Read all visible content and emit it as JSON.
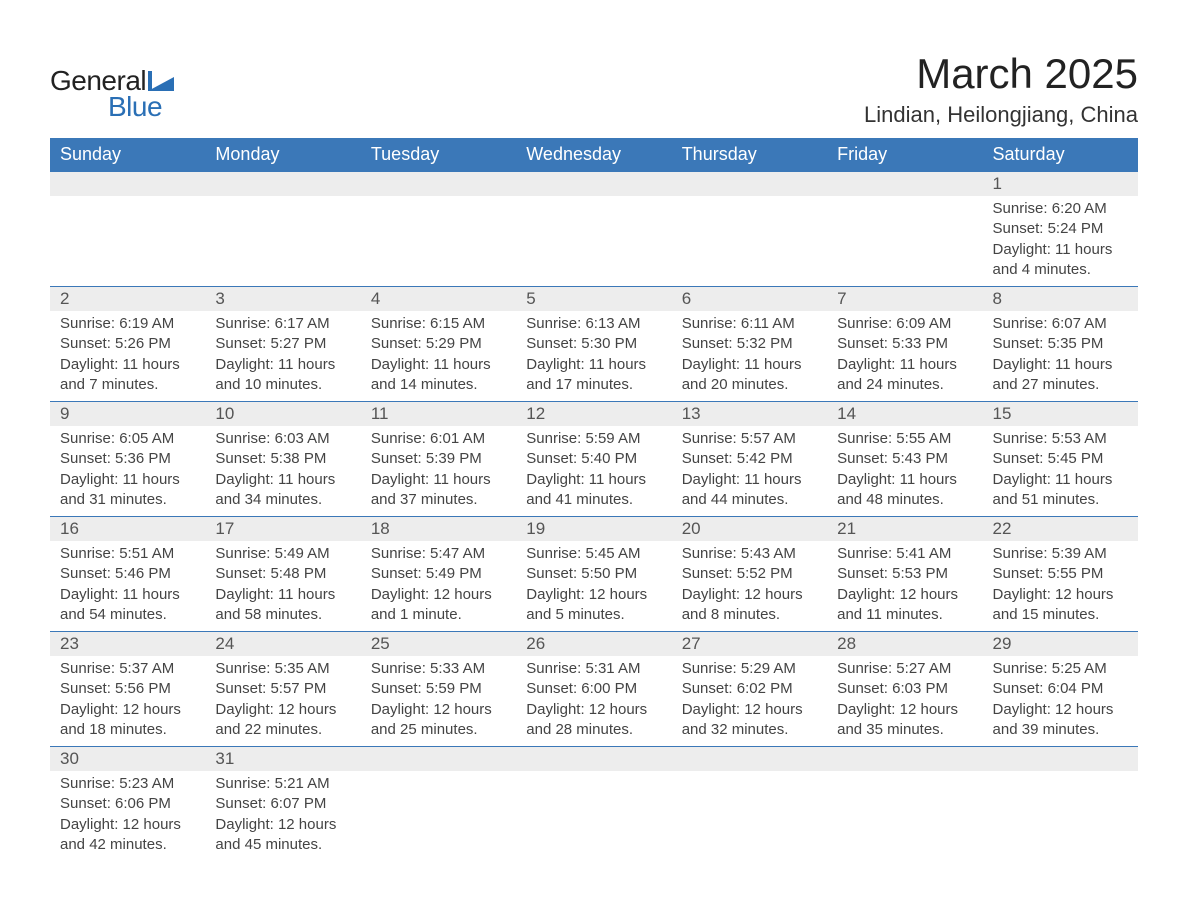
{
  "logo": {
    "text1": "General",
    "text2": "Blue",
    "shape_color": "#2a6fb5"
  },
  "title": "March 2025",
  "location": "Lindian, Heilongjiang, China",
  "colors": {
    "header_bg": "#3b78b8",
    "header_text": "#ffffff",
    "daynum_bg": "#ededed",
    "border": "#3b78b8",
    "text": "#444444"
  },
  "weekdays": [
    "Sunday",
    "Monday",
    "Tuesday",
    "Wednesday",
    "Thursday",
    "Friday",
    "Saturday"
  ],
  "weeks": [
    [
      null,
      null,
      null,
      null,
      null,
      null,
      {
        "n": "1",
        "sunrise": "6:20 AM",
        "sunset": "5:24 PM",
        "daylight": "11 hours and 4 minutes."
      }
    ],
    [
      {
        "n": "2",
        "sunrise": "6:19 AM",
        "sunset": "5:26 PM",
        "daylight": "11 hours and 7 minutes."
      },
      {
        "n": "3",
        "sunrise": "6:17 AM",
        "sunset": "5:27 PM",
        "daylight": "11 hours and 10 minutes."
      },
      {
        "n": "4",
        "sunrise": "6:15 AM",
        "sunset": "5:29 PM",
        "daylight": "11 hours and 14 minutes."
      },
      {
        "n": "5",
        "sunrise": "6:13 AM",
        "sunset": "5:30 PM",
        "daylight": "11 hours and 17 minutes."
      },
      {
        "n": "6",
        "sunrise": "6:11 AM",
        "sunset": "5:32 PM",
        "daylight": "11 hours and 20 minutes."
      },
      {
        "n": "7",
        "sunrise": "6:09 AM",
        "sunset": "5:33 PM",
        "daylight": "11 hours and 24 minutes."
      },
      {
        "n": "8",
        "sunrise": "6:07 AM",
        "sunset": "5:35 PM",
        "daylight": "11 hours and 27 minutes."
      }
    ],
    [
      {
        "n": "9",
        "sunrise": "6:05 AM",
        "sunset": "5:36 PM",
        "daylight": "11 hours and 31 minutes."
      },
      {
        "n": "10",
        "sunrise": "6:03 AM",
        "sunset": "5:38 PM",
        "daylight": "11 hours and 34 minutes."
      },
      {
        "n": "11",
        "sunrise": "6:01 AM",
        "sunset": "5:39 PM",
        "daylight": "11 hours and 37 minutes."
      },
      {
        "n": "12",
        "sunrise": "5:59 AM",
        "sunset": "5:40 PM",
        "daylight": "11 hours and 41 minutes."
      },
      {
        "n": "13",
        "sunrise": "5:57 AM",
        "sunset": "5:42 PM",
        "daylight": "11 hours and 44 minutes."
      },
      {
        "n": "14",
        "sunrise": "5:55 AM",
        "sunset": "5:43 PM",
        "daylight": "11 hours and 48 minutes."
      },
      {
        "n": "15",
        "sunrise": "5:53 AM",
        "sunset": "5:45 PM",
        "daylight": "11 hours and 51 minutes."
      }
    ],
    [
      {
        "n": "16",
        "sunrise": "5:51 AM",
        "sunset": "5:46 PM",
        "daylight": "11 hours and 54 minutes."
      },
      {
        "n": "17",
        "sunrise": "5:49 AM",
        "sunset": "5:48 PM",
        "daylight": "11 hours and 58 minutes."
      },
      {
        "n": "18",
        "sunrise": "5:47 AM",
        "sunset": "5:49 PM",
        "daylight": "12 hours and 1 minute."
      },
      {
        "n": "19",
        "sunrise": "5:45 AM",
        "sunset": "5:50 PM",
        "daylight": "12 hours and 5 minutes."
      },
      {
        "n": "20",
        "sunrise": "5:43 AM",
        "sunset": "5:52 PM",
        "daylight": "12 hours and 8 minutes."
      },
      {
        "n": "21",
        "sunrise": "5:41 AM",
        "sunset": "5:53 PM",
        "daylight": "12 hours and 11 minutes."
      },
      {
        "n": "22",
        "sunrise": "5:39 AM",
        "sunset": "5:55 PM",
        "daylight": "12 hours and 15 minutes."
      }
    ],
    [
      {
        "n": "23",
        "sunrise": "5:37 AM",
        "sunset": "5:56 PM",
        "daylight": "12 hours and 18 minutes."
      },
      {
        "n": "24",
        "sunrise": "5:35 AM",
        "sunset": "5:57 PM",
        "daylight": "12 hours and 22 minutes."
      },
      {
        "n": "25",
        "sunrise": "5:33 AM",
        "sunset": "5:59 PM",
        "daylight": "12 hours and 25 minutes."
      },
      {
        "n": "26",
        "sunrise": "5:31 AM",
        "sunset": "6:00 PM",
        "daylight": "12 hours and 28 minutes."
      },
      {
        "n": "27",
        "sunrise": "5:29 AM",
        "sunset": "6:02 PM",
        "daylight": "12 hours and 32 minutes."
      },
      {
        "n": "28",
        "sunrise": "5:27 AM",
        "sunset": "6:03 PM",
        "daylight": "12 hours and 35 minutes."
      },
      {
        "n": "29",
        "sunrise": "5:25 AM",
        "sunset": "6:04 PM",
        "daylight": "12 hours and 39 minutes."
      }
    ],
    [
      {
        "n": "30",
        "sunrise": "5:23 AM",
        "sunset": "6:06 PM",
        "daylight": "12 hours and 42 minutes."
      },
      {
        "n": "31",
        "sunrise": "5:21 AM",
        "sunset": "6:07 PM",
        "daylight": "12 hours and 45 minutes."
      },
      null,
      null,
      null,
      null,
      null
    ]
  ],
  "labels": {
    "sunrise": "Sunrise:",
    "sunset": "Sunset:",
    "daylight": "Daylight:"
  }
}
